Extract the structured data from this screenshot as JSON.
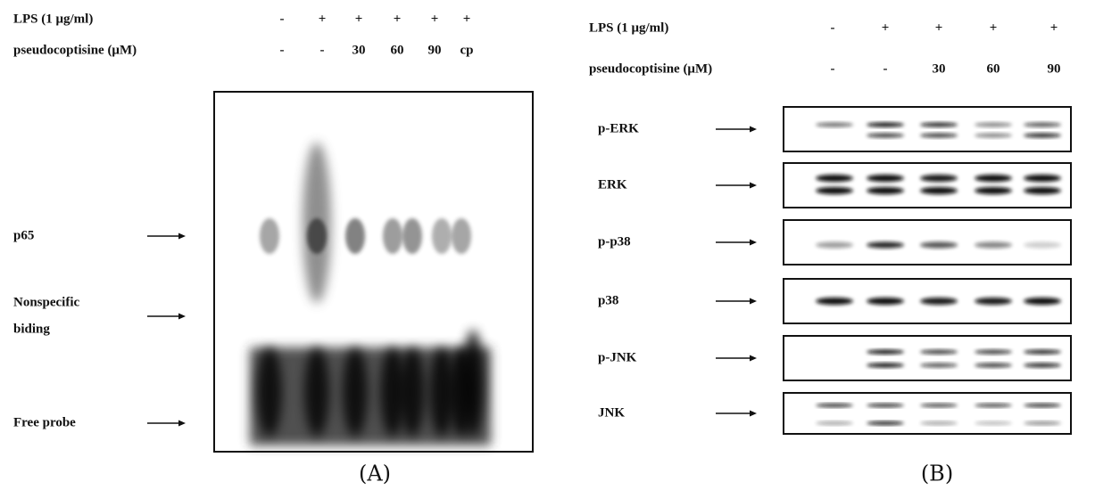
{
  "panel_a": {
    "treatments": [
      {
        "label": "LPS (1 μg/ml)",
        "lanes": [
          "-",
          "+",
          "+",
          "+",
          "+",
          "+"
        ]
      },
      {
        "label": "pseudocoptisine (μM)",
        "lanes": [
          "-",
          "-",
          "30",
          "60",
          "90",
          "cp"
        ]
      }
    ],
    "bands": [
      {
        "label": [
          "p65"
        ]
      },
      {
        "label": [
          "Nonspecific",
          "biding"
        ]
      },
      {
        "label": [
          "Free probe"
        ]
      }
    ],
    "caption": "(A)"
  },
  "panel_b": {
    "treatments": [
      {
        "label": "LPS (1 μg/ml)",
        "lanes": [
          "-",
          "+",
          "+",
          "+",
          "+"
        ]
      },
      {
        "label": "pseudocoptisine (μM)",
        "lanes": [
          "-",
          "-",
          "30",
          "60",
          "90"
        ]
      }
    ],
    "blots": [
      "p-ERK",
      "ERK",
      "p-p38",
      "p38",
      "p-JNK",
      "JNK"
    ],
    "caption": "(B)"
  }
}
